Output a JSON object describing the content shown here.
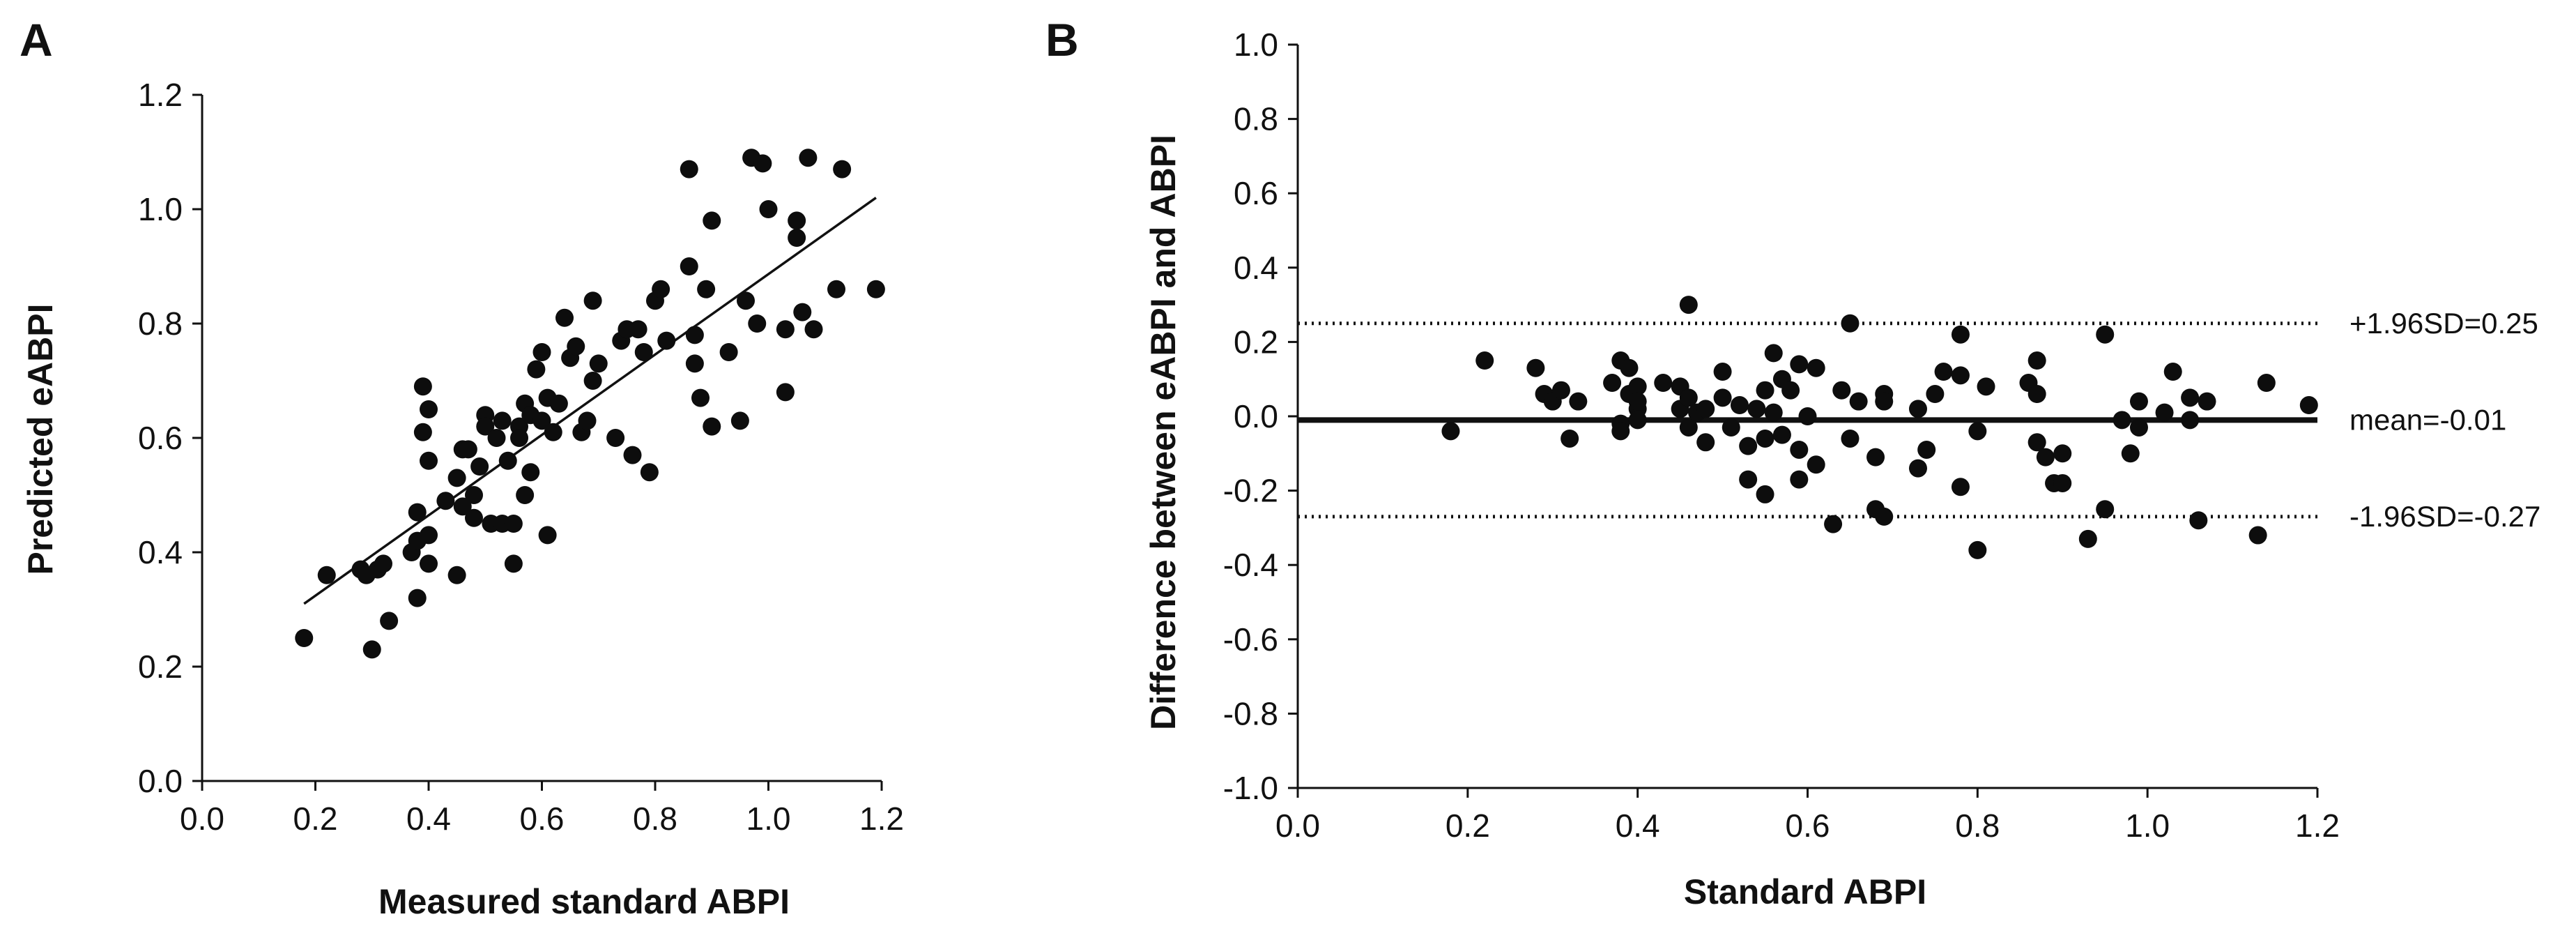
{
  "chart_data": [
    {
      "panel": "A",
      "type": "scatter",
      "xlabel": "Measured standard ABPI",
      "ylabel": "Predicted eABPI",
      "xlim": [
        0.0,
        1.2
      ],
      "ylim": [
        0.0,
        1.2
      ],
      "xticks": [
        "0.0",
        "0.2",
        "0.4",
        "0.6",
        "0.8",
        "1.0",
        "1.2"
      ],
      "yticks": [
        "0.0",
        "0.2",
        "0.4",
        "0.6",
        "0.8",
        "1.0",
        "1.2"
      ],
      "xtick_values": [
        0.0,
        0.2,
        0.4,
        0.6,
        0.8,
        1.0,
        1.2
      ],
      "ytick_values": [
        0.0,
        0.2,
        0.4,
        0.6,
        0.8,
        1.0,
        1.2
      ],
      "grid": false,
      "trendline": {
        "x": [
          0.18,
          1.19
        ],
        "y": [
          0.31,
          1.02
        ]
      },
      "points": [
        [
          0.18,
          0.25
        ],
        [
          0.22,
          0.36
        ],
        [
          0.28,
          0.37
        ],
        [
          0.29,
          0.36
        ],
        [
          0.3,
          0.23
        ],
        [
          0.31,
          0.37
        ],
        [
          0.32,
          0.38
        ],
        [
          0.33,
          0.28
        ],
        [
          0.37,
          0.4
        ],
        [
          0.38,
          0.32
        ],
        [
          0.38,
          0.47
        ],
        [
          0.38,
          0.42
        ],
        [
          0.39,
          0.69
        ],
        [
          0.39,
          0.61
        ],
        [
          0.4,
          0.65
        ],
        [
          0.4,
          0.56
        ],
        [
          0.4,
          0.43
        ],
        [
          0.4,
          0.38
        ],
        [
          0.43,
          0.49
        ],
        [
          0.45,
          0.36
        ],
        [
          0.45,
          0.53
        ],
        [
          0.46,
          0.58
        ],
        [
          0.46,
          0.48
        ],
        [
          0.47,
          0.58
        ],
        [
          0.48,
          0.46
        ],
        [
          0.48,
          0.5
        ],
        [
          0.49,
          0.55
        ],
        [
          0.5,
          0.64
        ],
        [
          0.5,
          0.62
        ],
        [
          0.51,
          0.45
        ],
        [
          0.52,
          0.6
        ],
        [
          0.53,
          0.63
        ],
        [
          0.53,
          0.45
        ],
        [
          0.54,
          0.56
        ],
        [
          0.55,
          0.38
        ],
        [
          0.55,
          0.45
        ],
        [
          0.56,
          0.62
        ],
        [
          0.56,
          0.6
        ],
        [
          0.57,
          0.66
        ],
        [
          0.57,
          0.5
        ],
        [
          0.58,
          0.64
        ],
        [
          0.58,
          0.54
        ],
        [
          0.59,
          0.72
        ],
        [
          0.6,
          0.75
        ],
        [
          0.6,
          0.63
        ],
        [
          0.61,
          0.67
        ],
        [
          0.61,
          0.43
        ],
        [
          0.62,
          0.61
        ],
        [
          0.63,
          0.66
        ],
        [
          0.64,
          0.81
        ],
        [
          0.65,
          0.74
        ],
        [
          0.66,
          0.76
        ],
        [
          0.67,
          0.61
        ],
        [
          0.68,
          0.63
        ],
        [
          0.69,
          0.7
        ],
        [
          0.69,
          0.84
        ],
        [
          0.7,
          0.73
        ],
        [
          0.73,
          0.6
        ],
        [
          0.74,
          0.77
        ],
        [
          0.75,
          0.79
        ],
        [
          0.76,
          0.57
        ],
        [
          0.77,
          0.79
        ],
        [
          0.78,
          0.75
        ],
        [
          0.79,
          0.54
        ],
        [
          0.8,
          0.84
        ],
        [
          0.81,
          0.86
        ],
        [
          0.82,
          0.77
        ],
        [
          0.86,
          0.9
        ],
        [
          0.86,
          1.07
        ],
        [
          0.87,
          0.73
        ],
        [
          0.87,
          0.78
        ],
        [
          0.88,
          0.67
        ],
        [
          0.89,
          0.86
        ],
        [
          0.9,
          0.62
        ],
        [
          0.9,
          0.98
        ],
        [
          0.93,
          0.75
        ],
        [
          0.95,
          0.63
        ],
        [
          0.96,
          0.84
        ],
        [
          0.97,
          1.09
        ],
        [
          0.98,
          0.8
        ],
        [
          0.99,
          1.08
        ],
        [
          1.0,
          1.0
        ],
        [
          1.03,
          0.68
        ],
        [
          1.03,
          0.79
        ],
        [
          1.05,
          0.98
        ],
        [
          1.05,
          0.95
        ],
        [
          1.06,
          0.82
        ],
        [
          1.07,
          1.09
        ],
        [
          1.08,
          0.79
        ],
        [
          1.12,
          0.86
        ],
        [
          1.13,
          1.07
        ],
        [
          1.19,
          0.86
        ]
      ]
    },
    {
      "panel": "B",
      "type": "scatter",
      "xlabel": "Standard ABPI",
      "ylabel": "Difference between eABPI  and ABPI",
      "xlim": [
        0.0,
        1.2
      ],
      "ylim": [
        -1.0,
        1.0
      ],
      "xticks": [
        "0.0",
        "0.2",
        "0.4",
        "0.6",
        "0.8",
        "1.0",
        "1.2"
      ],
      "yticks": [
        "-1.0",
        "-0.8",
        "-0.6",
        "-0.4",
        "-0.2",
        "0.0",
        "0.2",
        "0.4",
        "0.6",
        "0.8",
        "1.0"
      ],
      "xtick_values": [
        0.0,
        0.2,
        0.4,
        0.6,
        0.8,
        1.0,
        1.2
      ],
      "ytick_values": [
        -1.0,
        -0.8,
        -0.6,
        -0.4,
        -0.2,
        0.0,
        0.2,
        0.4,
        0.6,
        0.8,
        1.0
      ],
      "grid": false,
      "reference_lines": [
        {
          "value": 0.25,
          "style": "dotted",
          "label": "+1.96SD=0.25"
        },
        {
          "value": -0.01,
          "style": "solid",
          "label": "mean=-0.01"
        },
        {
          "value": -0.27,
          "style": "dotted",
          "label": "-1.96SD=-0.27"
        }
      ],
      "points": [
        [
          0.18,
          -0.04
        ],
        [
          0.22,
          0.15
        ],
        [
          0.28,
          0.13
        ],
        [
          0.29,
          0.06
        ],
        [
          0.3,
          0.04
        ],
        [
          0.31,
          0.07
        ],
        [
          0.32,
          -0.06
        ],
        [
          0.33,
          0.04
        ],
        [
          0.37,
          0.09
        ],
        [
          0.38,
          0.15
        ],
        [
          0.38,
          -0.02
        ],
        [
          0.38,
          -0.04
        ],
        [
          0.39,
          0.13
        ],
        [
          0.39,
          0.06
        ],
        [
          0.4,
          0.08
        ],
        [
          0.4,
          0.02
        ],
        [
          0.4,
          -0.01
        ],
        [
          0.4,
          0.04
        ],
        [
          0.43,
          0.09
        ],
        [
          0.45,
          0.08
        ],
        [
          0.45,
          0.02
        ],
        [
          0.46,
          0.3
        ],
        [
          0.46,
          0.05
        ],
        [
          0.46,
          -0.03
        ],
        [
          0.47,
          0.01
        ],
        [
          0.48,
          -0.07
        ],
        [
          0.48,
          0.02
        ],
        [
          0.5,
          0.12
        ],
        [
          0.5,
          0.05
        ],
        [
          0.51,
          -0.03
        ],
        [
          0.52,
          0.03
        ],
        [
          0.53,
          -0.08
        ],
        [
          0.53,
          -0.17
        ],
        [
          0.54,
          0.02
        ],
        [
          0.55,
          -0.21
        ],
        [
          0.55,
          -0.06
        ],
        [
          0.55,
          0.07
        ],
        [
          0.56,
          0.17
        ],
        [
          0.56,
          0.01
        ],
        [
          0.57,
          0.1
        ],
        [
          0.57,
          -0.05
        ],
        [
          0.58,
          0.07
        ],
        [
          0.59,
          0.14
        ],
        [
          0.59,
          -0.09
        ],
        [
          0.59,
          -0.17
        ],
        [
          0.6,
          0.0
        ],
        [
          0.61,
          0.13
        ],
        [
          0.61,
          -0.13
        ],
        [
          0.63,
          -0.29
        ],
        [
          0.64,
          0.07
        ],
        [
          0.65,
          0.25
        ],
        [
          0.65,
          -0.06
        ],
        [
          0.66,
          0.04
        ],
        [
          0.68,
          -0.25
        ],
        [
          0.68,
          -0.11
        ],
        [
          0.69,
          0.06
        ],
        [
          0.69,
          0.04
        ],
        [
          0.69,
          -0.27
        ],
        [
          0.73,
          0.02
        ],
        [
          0.73,
          -0.14
        ],
        [
          0.74,
          -0.09
        ],
        [
          0.75,
          0.06
        ],
        [
          0.76,
          0.12
        ],
        [
          0.78,
          0.22
        ],
        [
          0.78,
          0.11
        ],
        [
          0.78,
          -0.19
        ],
        [
          0.8,
          -0.04
        ],
        [
          0.8,
          -0.36
        ],
        [
          0.81,
          0.08
        ],
        [
          0.86,
          0.09
        ],
        [
          0.87,
          0.15
        ],
        [
          0.87,
          0.06
        ],
        [
          0.87,
          -0.07
        ],
        [
          0.88,
          -0.11
        ],
        [
          0.89,
          -0.18
        ],
        [
          0.9,
          -0.18
        ],
        [
          0.9,
          -0.1
        ],
        [
          0.93,
          -0.33
        ],
        [
          0.95,
          0.22
        ],
        [
          0.95,
          -0.25
        ],
        [
          0.97,
          -0.01
        ],
        [
          0.98,
          -0.1
        ],
        [
          0.99,
          -0.03
        ],
        [
          0.99,
          0.04
        ],
        [
          1.02,
          0.01
        ],
        [
          1.03,
          0.12
        ],
        [
          1.05,
          0.05
        ],
        [
          1.05,
          -0.01
        ],
        [
          1.06,
          -0.28
        ],
        [
          1.07,
          0.04
        ],
        [
          1.13,
          -0.32
        ],
        [
          1.14,
          0.09
        ],
        [
          1.19,
          0.03
        ]
      ]
    }
  ]
}
